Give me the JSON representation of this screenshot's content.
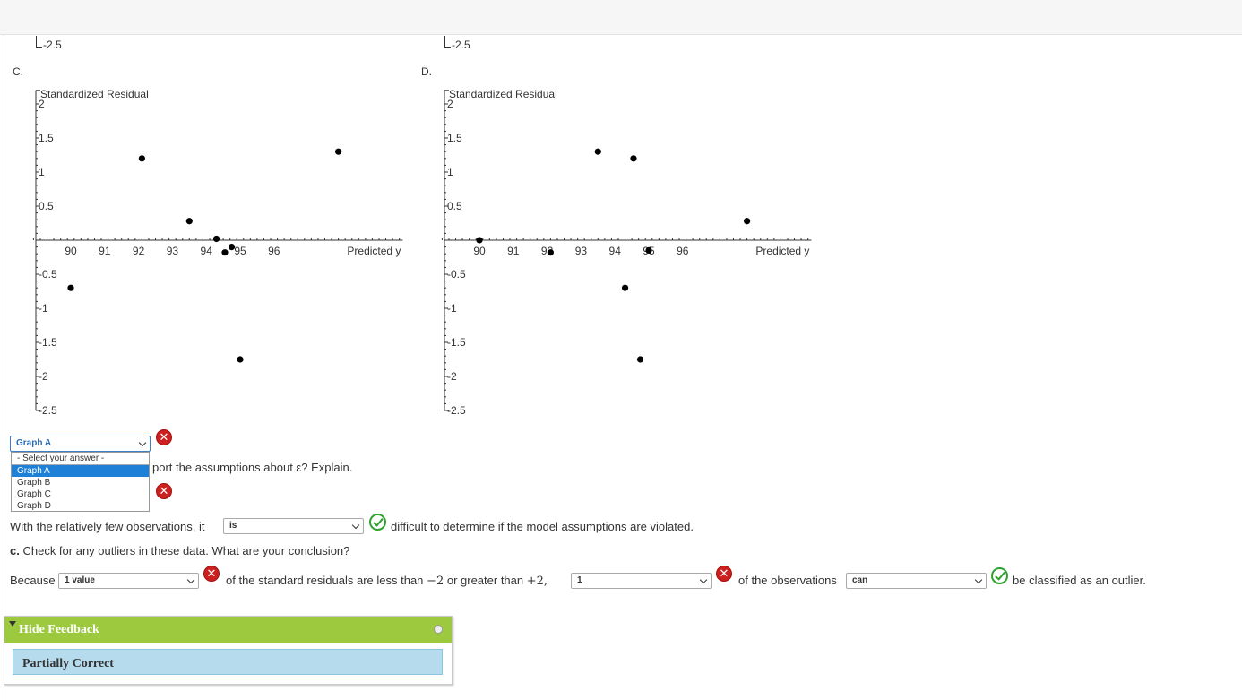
{
  "charts": {
    "C": {
      "letter": "C.",
      "y_axis_label": "Standardized Residual",
      "x_axis_label": "Predicted y",
      "x_ticks": [
        "90",
        "91",
        "92",
        "93",
        "94",
        "95",
        "96"
      ],
      "y_ticks": [
        "2",
        "1.5",
        "1",
        "0.5",
        "-0.5",
        "-1",
        "-1.5",
        "-2",
        "-2.5"
      ],
      "top_clip_label": "-2.5"
    },
    "D": {
      "letter": "D.",
      "y_axis_label": "Standardized Residual",
      "x_axis_label": "Predicted y",
      "x_ticks": [
        "90",
        "91",
        "92",
        "93",
        "94",
        "95",
        "96"
      ],
      "y_ticks": [
        "2",
        "1.5",
        "1",
        "0.5",
        "-0.5",
        "-1",
        "-1.5",
        "-2",
        "-2.5"
      ],
      "top_clip_label": "-2.5"
    }
  },
  "chart_data": [
    {
      "type": "scatter",
      "title": "",
      "xlabel": "Predicted y",
      "ylabel": "Standardized Residual",
      "xlim": [
        88.9,
        99.8
      ],
      "ylim": [
        -2.5,
        2.2
      ],
      "points": [
        {
          "x": 90.0,
          "y": -0.7
        },
        {
          "x": 92.1,
          "y": 1.2
        },
        {
          "x": 93.5,
          "y": 0.28
        },
        {
          "x": 94.3,
          "y": 0.02
        },
        {
          "x": 94.55,
          "y": -0.18
        },
        {
          "x": 94.75,
          "y": -0.1
        },
        {
          "x": 95.0,
          "y": -1.75
        },
        {
          "x": 97.9,
          "y": 1.3
        }
      ]
    },
    {
      "type": "scatter",
      "title": "",
      "xlabel": "Predicted y",
      "ylabel": "Standardized Residual",
      "xlim": [
        88.9,
        99.8
      ],
      "ylim": [
        -2.5,
        2.2
      ],
      "points": [
        {
          "x": 90.0,
          "y": 0.0
        },
        {
          "x": 92.1,
          "y": -0.18
        },
        {
          "x": 93.5,
          "y": 1.3
        },
        {
          "x": 94.3,
          "y": -0.7
        },
        {
          "x": 94.55,
          "y": 1.2
        },
        {
          "x": 94.75,
          "y": -1.75
        },
        {
          "x": 95.0,
          "y": -0.15
        },
        {
          "x": 97.9,
          "y": 0.28
        }
      ]
    }
  ],
  "q_graph": {
    "selected": "Graph A",
    "options": [
      "- Select your answer -",
      "Graph A",
      "Graph B",
      "Graph C",
      "Graph D"
    ],
    "question_fragment": "port the assumptions about ε? Explain."
  },
  "line_few_obs": {
    "prefix": "With the relatively few observations, it",
    "selected": "is",
    "suffix": "difficult to determine if the model assumptions are violated."
  },
  "part_c": {
    "label": "c.",
    "question": "Check for any outliers in these data. What are your conclusion?"
  },
  "line_because": {
    "prefix": "Because",
    "sel1": "1 value",
    "mid1": "of the standard residuals are less than",
    "neg_two": "−2",
    "or_text": "or greater than",
    "pos_two": "+2,",
    "sel2": "1",
    "mid2": "of the observations",
    "sel3": "can",
    "suffix": "be classified as an outlier."
  },
  "feedback": {
    "header": "Hide Feedback",
    "status": "Partially Correct"
  },
  "colors": {
    "feedback_header": "#9dc93f",
    "feedback_body": "#b6dbed",
    "incorrect": "#cc1f1f",
    "correct": "#2fa12f",
    "dropdown_highlight": "#1e80d6"
  }
}
